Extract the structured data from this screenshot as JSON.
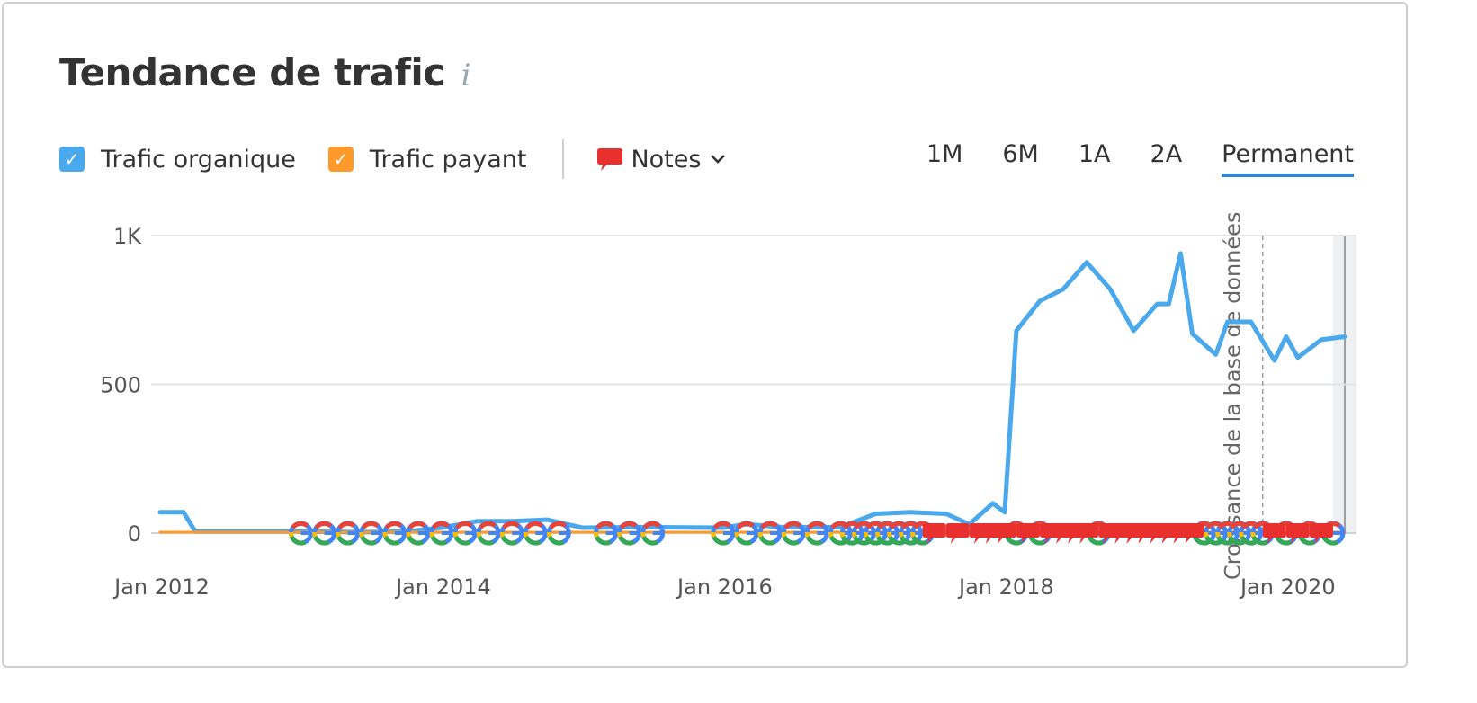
{
  "header": {
    "title": "Tendance de trafic",
    "info_icon": "i"
  },
  "legend": {
    "organic_label": "Trafic organique",
    "paid_label": "Trafic payant",
    "notes_label": "Notes",
    "check_glyph": "✓"
  },
  "periods": [
    "1M",
    "6M",
    "1A",
    "2A",
    "Permanent"
  ],
  "active_period": "Permanent",
  "colors": {
    "organic": "#4aa8ec",
    "paid": "#ff9a2a",
    "note": "#e8312f",
    "accent": "#2a87d8"
  },
  "chart_data": {
    "type": "line",
    "title": "",
    "xlabel": "",
    "ylabel": "",
    "x_ticks": [
      "Jan 2012",
      "Jan 2014",
      "Jan 2016",
      "Jan 2018",
      "Jan 2020"
    ],
    "y_ticks": [
      "0",
      "500",
      "1K"
    ],
    "ylim": [
      0,
      1000
    ],
    "xlim": [
      "2012-01",
      "2020-06"
    ],
    "grid": true,
    "legend_position": "top-left",
    "series": [
      {
        "name": "Trafic organique",
        "color": "#4aa8ec",
        "points": [
          [
            "2012-01",
            70
          ],
          [
            "2012-03",
            70
          ],
          [
            "2012-04",
            5
          ],
          [
            "2012-08",
            5
          ],
          [
            "2013-01",
            5
          ],
          [
            "2013-06",
            3
          ],
          [
            "2013-10",
            5
          ],
          [
            "2014-01",
            18
          ],
          [
            "2014-04",
            40
          ],
          [
            "2014-07",
            40
          ],
          [
            "2014-10",
            45
          ],
          [
            "2015-01",
            18
          ],
          [
            "2015-06",
            20
          ],
          [
            "2016-01",
            18
          ],
          [
            "2016-03",
            30
          ],
          [
            "2016-06",
            20
          ],
          [
            "2016-11",
            20
          ],
          [
            "2017-02",
            65
          ],
          [
            "2017-05",
            70
          ],
          [
            "2017-08",
            65
          ],
          [
            "2017-10",
            30
          ],
          [
            "2017-12",
            100
          ],
          [
            "2018-01",
            70
          ],
          [
            "2018-02",
            680
          ],
          [
            "2018-04",
            780
          ],
          [
            "2018-06",
            820
          ],
          [
            "2018-08",
            910
          ],
          [
            "2018-10",
            820
          ],
          [
            "2018-12",
            680
          ],
          [
            "2019-02",
            770
          ],
          [
            "2019-03",
            770
          ],
          [
            "2019-04",
            940
          ],
          [
            "2019-05",
            670
          ],
          [
            "2019-07",
            600
          ],
          [
            "2019-08",
            710
          ],
          [
            "2019-10",
            710
          ],
          [
            "2019-12",
            580
          ],
          [
            "2020-01",
            660
          ],
          [
            "2020-02",
            590
          ],
          [
            "2020-04",
            650
          ],
          [
            "2020-06",
            660
          ]
        ]
      },
      {
        "name": "Trafic payant",
        "color": "#ff9a2a",
        "points": [
          [
            "2012-01",
            3
          ],
          [
            "2016-01",
            3
          ],
          [
            "2020-06",
            3
          ]
        ]
      }
    ],
    "annotations": [
      {
        "x": "2019-11",
        "label": "Croissance de la base de données",
        "style": "dashed-vertical"
      }
    ],
    "note_markers": {
      "google_update_glyph": "G",
      "google_updates": [
        "2013-01",
        "2013-03",
        "2013-05",
        "2013-07",
        "2013-09",
        "2013-11",
        "2014-01",
        "2014-03",
        "2014-05",
        "2014-07",
        "2014-09",
        "2014-11",
        "2015-03",
        "2015-05",
        "2015-07",
        "2016-01",
        "2016-03",
        "2016-05",
        "2016-07",
        "2016-09",
        "2016-11",
        "2016-12",
        "2017-01",
        "2017-02",
        "2017-03",
        "2017-04",
        "2017-05",
        "2017-06",
        "2018-02",
        "2018-04",
        "2018-09",
        "2019-06",
        "2019-07",
        "2019-08",
        "2019-09",
        "2019-10",
        "2019-11",
        "2020-01",
        "2020-03",
        "2020-05"
      ],
      "notes": [
        "2017-07",
        "2017-09",
        "2017-11",
        "2017-12",
        "2018-01",
        "2018-03",
        "2018-05",
        "2018-06",
        "2018-07",
        "2018-08",
        "2018-10",
        "2018-11",
        "2018-12",
        "2019-01",
        "2019-02",
        "2019-03",
        "2019-04",
        "2019-05",
        "2019-12",
        "2020-02",
        "2020-04"
      ]
    }
  }
}
